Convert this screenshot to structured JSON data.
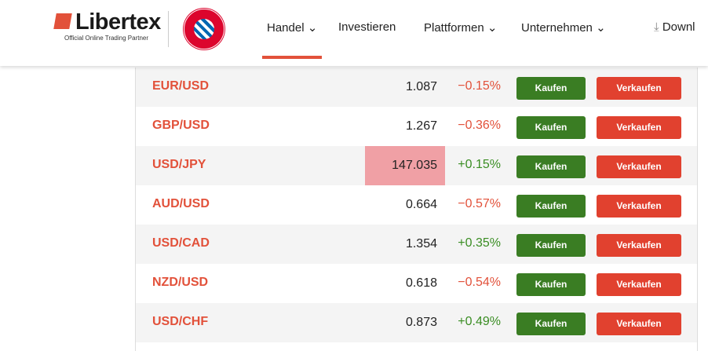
{
  "header": {
    "logo_text": "Libertex",
    "logo_tagline": "Official Online Trading Partner",
    "partner_logo": "FC Bayern München",
    "nav": [
      {
        "label": "Handel",
        "chevron": true,
        "active": true
      },
      {
        "label": "Investieren",
        "chevron": false
      },
      {
        "label": "Plattformen",
        "chevron": true
      },
      {
        "label": "Unternehmen",
        "chevron": true
      },
      {
        "label": "Downl",
        "icon": "download-icon"
      }
    ]
  },
  "colors": {
    "accent": "#e2513a",
    "buy": "#3a7d23",
    "sell": "#e1412f",
    "negative": "#e2513a",
    "positive": "#3a8d23",
    "highlight": "#f0a0a5"
  },
  "buy_label": "Kaufen",
  "sell_label": "Verkaufen",
  "rows": [
    {
      "pair": "EUR/USD",
      "price": "1.087",
      "change": "−0.15%",
      "dir": "down"
    },
    {
      "pair": "GBP/USD",
      "price": "1.267",
      "change": "−0.36%",
      "dir": "down"
    },
    {
      "pair": "USD/JPY",
      "price": "147.035",
      "change": "+0.15%",
      "dir": "up",
      "highlight": true
    },
    {
      "pair": "AUD/USD",
      "price": "0.664",
      "change": "−0.57%",
      "dir": "down"
    },
    {
      "pair": "USD/CAD",
      "price": "1.354",
      "change": "+0.35%",
      "dir": "up"
    },
    {
      "pair": "NZD/USD",
      "price": "0.618",
      "change": "−0.54%",
      "dir": "down"
    },
    {
      "pair": "USD/CHF",
      "price": "0.873",
      "change": "+0.49%",
      "dir": "up"
    }
  ]
}
